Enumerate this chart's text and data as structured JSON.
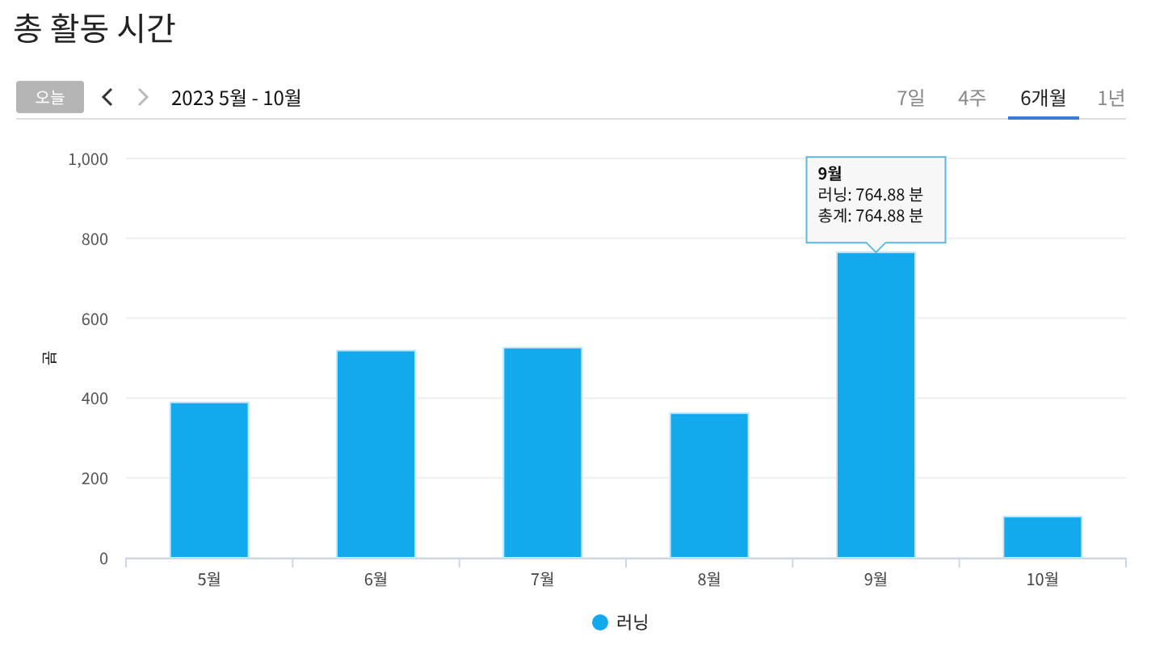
{
  "chart_data": {
    "type": "bar",
    "title": "총 활동 시간",
    "ylabel": "분",
    "categories": [
      "5월",
      "6월",
      "7월",
      "8월",
      "9월",
      "10월"
    ],
    "series": [
      {
        "name": "러닝",
        "color": "#13a9ed",
        "values": [
          389,
          519,
          526,
          362,
          764.88,
          103
        ]
      }
    ],
    "ylim": [
      0,
      1000
    ],
    "yticks": [
      0,
      200,
      400,
      600,
      800,
      {
        "value": 1000,
        "label": "1,000"
      }
    ],
    "grid": "y",
    "legend": "bottom",
    "annotations": [
      "오늘",
      "2023 5월 - 10월",
      "7일",
      "4주",
      "6개월",
      "1년",
      {
        "text": "9월\n러닝: 764.88 분\n총계: 764.88 분",
        "x": "9월",
        "y": 764.88
      }
    ]
  }
}
